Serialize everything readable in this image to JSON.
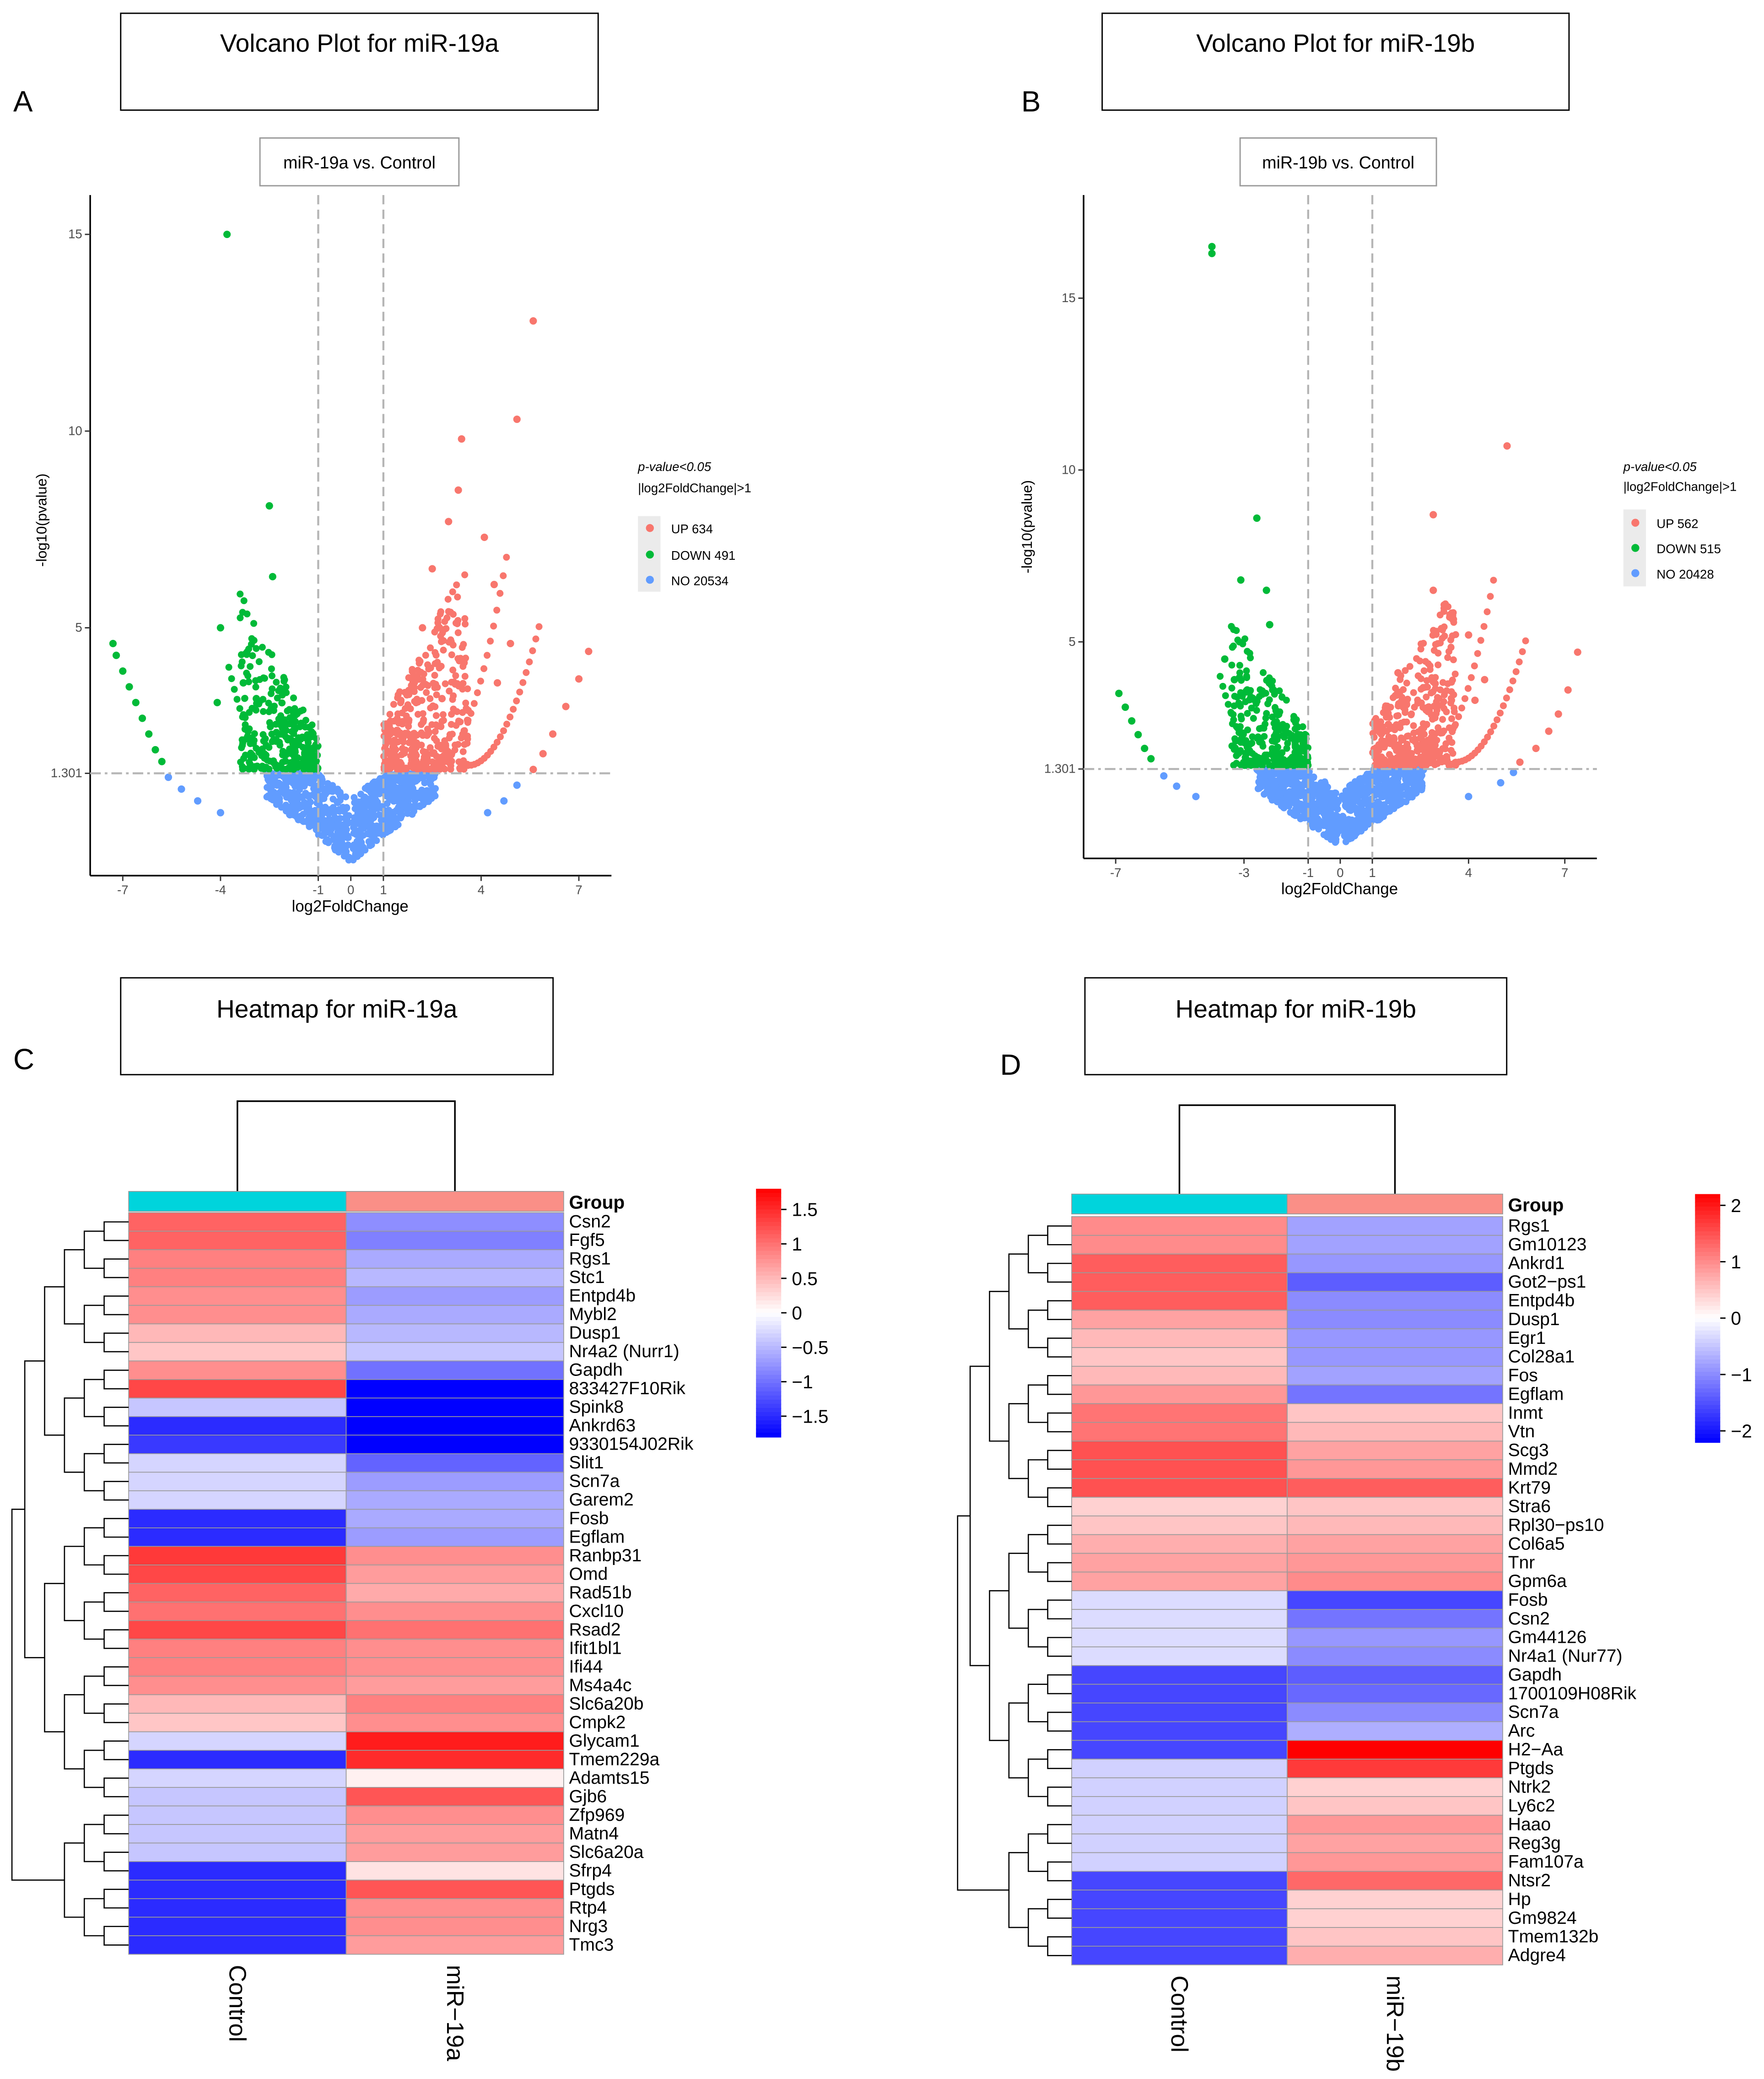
{
  "colors": {
    "up": "#f8766d",
    "down": "#00ba38",
    "no": "#619cff",
    "heat_high": "#ff0000",
    "heat_mid": "#ffffff",
    "heat_low": "#0000ff",
    "group_control": "#00d4dc",
    "group_mir": "#fa8f87"
  },
  "chart_data": [
    {
      "panel": "A",
      "type": "scatter",
      "box_title": "Volcano Plot for miR-19a",
      "title": "miR-19a vs. Control",
      "xlabel": "log2FoldChange",
      "ylabel": "-log10(pvalue)",
      "xlim": [
        -8,
        8
      ],
      "ylim": [
        -1.3,
        16
      ],
      "x_ticks": [
        -7,
        -4,
        -1,
        0,
        1,
        4,
        7
      ],
      "y_ticks": [
        1.301,
        5,
        10,
        15
      ],
      "thresholds": {
        "x": [
          -1,
          1
        ],
        "y": 1.301
      },
      "legend": {
        "cond1": "p-value<0.05",
        "cond2": "|log2FoldChange|>1",
        "up": "UP 634",
        "down": "DOWN 491",
        "no": "NO 20534"
      },
      "highlight_points": {
        "down": [
          [
            -3.8,
            15.0
          ],
          [
            -2.5,
            8.1
          ],
          [
            -2.4,
            6.3
          ],
          [
            -4.0,
            5.0
          ],
          [
            -7.3,
            4.6
          ],
          [
            -7.2,
            4.3
          ],
          [
            -7.0,
            3.9
          ],
          [
            -6.8,
            3.5
          ],
          [
            -6.6,
            3.1
          ],
          [
            -6.4,
            2.7
          ],
          [
            -6.2,
            2.3
          ],
          [
            -6.0,
            1.9
          ],
          [
            -5.8,
            1.6
          ],
          [
            -4.1,
            3.1
          ],
          [
            -3.3,
            3.6
          ],
          [
            -2.9,
            3.2
          ],
          [
            -2.1,
            3.4
          ],
          [
            -1.8,
            2.9
          ],
          [
            -1.6,
            2.2
          ]
        ],
        "up": [
          [
            5.6,
            12.8
          ],
          [
            5.1,
            10.3
          ],
          [
            3.4,
            9.8
          ],
          [
            3.3,
            8.5
          ],
          [
            3.0,
            7.7
          ],
          [
            4.1,
            7.3
          ],
          [
            4.4,
            6.1
          ],
          [
            2.5,
            6.5
          ],
          [
            2.2,
            5.0
          ],
          [
            7.3,
            4.4
          ],
          [
            7.0,
            3.7
          ],
          [
            6.6,
            3.0
          ],
          [
            6.2,
            2.3
          ],
          [
            5.9,
            1.8
          ],
          [
            5.6,
            1.4
          ],
          [
            4.9,
            4.6
          ],
          [
            4.5,
            3.6
          ],
          [
            3.6,
            2.9
          ],
          [
            1.6,
            2.2
          ],
          [
            2.8,
            3.2
          ]
        ],
        "no": [
          [
            -5.2,
            0.9
          ],
          [
            -4.7,
            0.6
          ],
          [
            -4.0,
            0.3
          ],
          [
            -5.6,
            1.2
          ],
          [
            4.2,
            0.3
          ],
          [
            4.7,
            0.6
          ],
          [
            5.1,
            1.0
          ]
        ]
      }
    },
    {
      "panel": "B",
      "type": "scatter",
      "box_title": "Volcano Plot for miR-19b",
      "title": "miR-19b vs. Control",
      "xlabel": "log2FoldChange",
      "ylabel": "-log10(pvalue)",
      "xlim": [
        -8,
        8
      ],
      "ylim": [
        -1.3,
        18
      ],
      "x_ticks": [
        -7,
        -3,
        -1,
        0,
        1,
        4,
        7
      ],
      "y_ticks": [
        1.301,
        5,
        10,
        15
      ],
      "thresholds": {
        "x": [
          -1,
          1
        ],
        "y": 1.301
      },
      "legend": {
        "cond1": "p-value<0.05",
        "cond2": "|log2FoldChange|>1",
        "up": "UP 562",
        "down": "DOWN 515",
        "no": "NO 20428"
      },
      "highlight_points": {
        "down": [
          [
            -4.0,
            16.5
          ],
          [
            -4.0,
            16.3
          ],
          [
            -2.6,
            8.6
          ],
          [
            -3.1,
            6.8
          ],
          [
            -2.3,
            6.5
          ],
          [
            -2.2,
            5.5
          ],
          [
            -6.9,
            3.5
          ],
          [
            -6.7,
            3.1
          ],
          [
            -6.5,
            2.7
          ],
          [
            -6.3,
            2.3
          ],
          [
            -6.1,
            1.9
          ],
          [
            -5.9,
            1.6
          ],
          [
            -3.6,
            4.5
          ],
          [
            -3.3,
            3.9
          ],
          [
            -2.9,
            3.6
          ],
          [
            -2.0,
            3.0
          ],
          [
            -1.7,
            2.4
          ],
          [
            -1.4,
            2.0
          ]
        ],
        "up": [
          [
            5.2,
            10.7
          ],
          [
            2.9,
            8.7
          ],
          [
            2.9,
            6.5
          ],
          [
            3.5,
            5.8
          ],
          [
            4.0,
            5.2
          ],
          [
            7.4,
            4.7
          ],
          [
            7.1,
            3.6
          ],
          [
            6.8,
            2.9
          ],
          [
            6.5,
            2.4
          ],
          [
            6.1,
            1.9
          ],
          [
            5.6,
            1.5
          ],
          [
            4.5,
            3.9
          ],
          [
            4.2,
            3.3
          ],
          [
            1.8,
            4.1
          ],
          [
            1.5,
            2.6
          ],
          [
            2.5,
            2.2
          ]
        ],
        "no": [
          [
            -5.1,
            0.8
          ],
          [
            -4.5,
            0.5
          ],
          [
            -5.5,
            1.1
          ],
          [
            4.0,
            0.5
          ],
          [
            5.0,
            0.9
          ],
          [
            5.4,
            1.2
          ]
        ]
      }
    },
    {
      "panel": "C",
      "type": "heatmap",
      "box_title": "Heatmap for miR-19a",
      "group_label": "Group",
      "columns": [
        "Control",
        "miR−19a"
      ],
      "colorbar_ticks": [
        "1.5",
        "1",
        "0.5",
        "0",
        "−0.5",
        "−1",
        "−1.5"
      ],
      "colorbar_values": [
        1.5,
        1,
        0.5,
        0,
        -0.5,
        -1,
        -1.5
      ],
      "colorbar_range": [
        -1.8,
        1.8
      ],
      "rows": [
        "Csn2",
        "Fgf5",
        "Rgs1",
        "Stc1",
        "Entpd4b",
        "Mybl2",
        "Dusp1",
        "Nr4a2 (Nurr1)",
        "Gapdh",
        "833427F10Rik",
        "Spink8",
        "Ankrd63",
        "9330154J02Rik",
        "Slit1",
        "Scn7a",
        "Garem2",
        "Fosb",
        "Egflam",
        "Ranbp31",
        "Omd",
        "Rad51b",
        "Cxcl10",
        "Rsad2",
        "Ifit1bl1",
        "Ifi44",
        "Ms4a4c",
        "Slc6a20b",
        "Cmpk2",
        "Glycam1",
        "Tmem229a",
        "Adamts15",
        "Gjb6",
        "Zfp969",
        "Matn4",
        "Slc6a20a",
        "Sfrp4",
        "Ptgds",
        "Rtp4",
        "Nrg3",
        "Tmc3"
      ],
      "values": [
        [
          1.1,
          -0.8
        ],
        [
          1.1,
          -0.9
        ],
        [
          0.9,
          -0.6
        ],
        [
          0.9,
          -0.5
        ],
        [
          0.8,
          -0.7
        ],
        [
          0.8,
          -0.6
        ],
        [
          0.5,
          -0.5
        ],
        [
          0.4,
          -0.4
        ],
        [
          0.8,
          -1.0
        ],
        [
          1.3,
          -1.9
        ],
        [
          -0.4,
          -1.8
        ],
        [
          -1.5,
          -1.8
        ],
        [
          -1.4,
          -1.9
        ],
        [
          -0.3,
          -1.1
        ],
        [
          -0.3,
          -0.7
        ],
        [
          -0.3,
          -0.6
        ],
        [
          -1.5,
          -0.6
        ],
        [
          -1.5,
          -0.7
        ],
        [
          1.4,
          0.8
        ],
        [
          1.3,
          0.7
        ],
        [
          1.1,
          0.6
        ],
        [
          1.0,
          0.8
        ],
        [
          1.3,
          1.0
        ],
        [
          0.9,
          0.8
        ],
        [
          0.9,
          0.8
        ],
        [
          0.8,
          0.7
        ],
        [
          0.5,
          0.9
        ],
        [
          0.4,
          0.8
        ],
        [
          -0.3,
          1.6
        ],
        [
          -1.5,
          1.5
        ],
        [
          -0.3,
          0.1
        ],
        [
          -0.4,
          1.2
        ],
        [
          -0.4,
          0.8
        ],
        [
          -0.4,
          0.7
        ],
        [
          -0.4,
          0.7
        ],
        [
          -1.5,
          0.2
        ],
        [
          -1.5,
          1.2
        ],
        [
          -1.5,
          0.8
        ],
        [
          -1.5,
          0.8
        ],
        [
          -1.5,
          0.7
        ]
      ]
    },
    {
      "panel": "D",
      "type": "heatmap",
      "box_title": "Heatmap for miR-19b",
      "group_label": "Group",
      "columns": [
        "Control",
        "miR−19b"
      ],
      "colorbar_ticks": [
        "2",
        "1",
        "0",
        "−1",
        "−2"
      ],
      "colorbar_values": [
        2,
        1,
        0,
        -1,
        -2
      ],
      "colorbar_range": [
        -2.2,
        2.2
      ],
      "rows": [
        "Rgs1",
        "Gm10123",
        "Ankrd1",
        "Got2−ps1",
        "Entpd4b",
        "Dusp1",
        "Egr1",
        "Col28a1",
        "Fos",
        "Egflam",
        "Inmt",
        "Vtn",
        "Scg3",
        "Mmd2",
        "Krt79",
        "Stra6",
        "Rpl30−ps10",
        "Col6a5",
        "Tnr",
        "Gpm6a",
        "Fosb",
        "Csn2",
        "Gm44126",
        "Nr4a1 (Nur77)",
        "Gapdh",
        "1700109H08Rik",
        "Scn7a",
        "Arc",
        "H2−Aa",
        "Ptgds",
        "Ntrk2",
        "Ly6c2",
        "Haao",
        "Reg3g",
        "Fam107a",
        "Ntsr2",
        "Hp",
        "Gm9824",
        "Tmem132b",
        "Adgre4"
      ],
      "values": [
        [
          1.0,
          -0.8
        ],
        [
          1.0,
          -0.8
        ],
        [
          1.4,
          -0.9
        ],
        [
          1.4,
          -1.4
        ],
        [
          1.4,
          -1.0
        ],
        [
          0.8,
          -1.0
        ],
        [
          0.6,
          -0.9
        ],
        [
          0.5,
          -0.9
        ],
        [
          0.6,
          -0.8
        ],
        [
          0.9,
          -1.2
        ],
        [
          1.2,
          0.5
        ],
        [
          1.2,
          0.6
        ],
        [
          1.5,
          0.8
        ],
        [
          1.5,
          0.9
        ],
        [
          1.5,
          1.4
        ],
        [
          0.4,
          0.5
        ],
        [
          0.5,
          0.6
        ],
        [
          0.7,
          0.8
        ],
        [
          0.8,
          0.9
        ],
        [
          0.8,
          1.0
        ],
        [
          -0.3,
          -1.6
        ],
        [
          -0.3,
          -1.2
        ],
        [
          -0.3,
          -0.9
        ],
        [
          -0.3,
          -1.0
        ],
        [
          -1.6,
          -1.4
        ],
        [
          -1.6,
          -1.3
        ],
        [
          -1.6,
          -1.0
        ],
        [
          -1.6,
          -0.7
        ],
        [
          -1.6,
          2.2
        ],
        [
          -0.4,
          1.7
        ],
        [
          -0.4,
          0.4
        ],
        [
          -0.4,
          0.5
        ],
        [
          -0.4,
          0.9
        ],
        [
          -0.4,
          0.8
        ],
        [
          -0.4,
          0.9
        ],
        [
          -1.6,
          1.3
        ],
        [
          -1.6,
          0.4
        ],
        [
          -1.6,
          0.4
        ],
        [
          -1.6,
          0.5
        ],
        [
          -1.6,
          0.7
        ]
      ]
    }
  ]
}
